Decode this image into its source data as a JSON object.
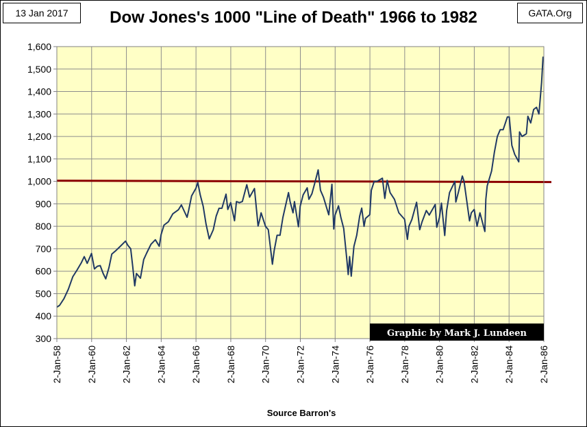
{
  "header": {
    "date": "13 Jan 2017",
    "site": "GATA.Org"
  },
  "chart_data": {
    "type": "line",
    "title": "Dow Jones's 1000 \"Line of Death\" 1966 to 1982",
    "xlabel": "Source Barron's",
    "ylabel": "",
    "x_ticks": [
      "2-Jan-58",
      "2-Jan-60",
      "2-Jan-62",
      "2-Jan-64",
      "2-Jan-66",
      "2-Jan-68",
      "2-Jan-70",
      "2-Jan-72",
      "2-Jan-74",
      "2-Jan-76",
      "2-Jan-78",
      "2-Jan-80",
      "2-Jan-82",
      "2-Jan-84",
      "2-Jan-86"
    ],
    "y_ticks": [
      "300",
      "400",
      "500",
      "600",
      "700",
      "800",
      "900",
      "1,000",
      "1,100",
      "1,200",
      "1,300",
      "1,400",
      "1,500",
      "1,600"
    ],
    "xlim": [
      "1958-01-02",
      "1986-01-02"
    ],
    "ylim": [
      300,
      1600
    ],
    "grid": true,
    "background": "#ffffc6",
    "series": [
      {
        "color": "#1f3864",
        "points": [
          [
            "1958-01-02",
            440
          ],
          [
            "1958-03-01",
            448
          ],
          [
            "1958-06-01",
            478
          ],
          [
            "1958-09-01",
            520
          ],
          [
            "1958-12-01",
            575
          ],
          [
            "1959-03-01",
            605
          ],
          [
            "1959-06-01",
            638
          ],
          [
            "1959-08-01",
            665
          ],
          [
            "1959-10-01",
            635
          ],
          [
            "1959-12-31",
            679
          ],
          [
            "1960-03-01",
            610
          ],
          [
            "1960-05-01",
            622
          ],
          [
            "1960-07-01",
            625
          ],
          [
            "1960-09-01",
            590
          ],
          [
            "1960-10-25",
            566
          ],
          [
            "1960-12-31",
            616
          ],
          [
            "1961-03-01",
            676
          ],
          [
            "1961-06-01",
            693
          ],
          [
            "1961-09-01",
            712
          ],
          [
            "1961-12-13",
            734
          ],
          [
            "1962-02-01",
            715
          ],
          [
            "1962-04-01",
            700
          ],
          [
            "1962-05-15",
            620
          ],
          [
            "1962-06-26",
            535
          ],
          [
            "1962-08-01",
            590
          ],
          [
            "1962-10-23",
            569
          ],
          [
            "1962-12-31",
            652
          ],
          [
            "1963-03-01",
            680
          ],
          [
            "1963-06-01",
            720
          ],
          [
            "1963-09-01",
            740
          ],
          [
            "1963-11-22",
            711
          ],
          [
            "1963-12-31",
            763
          ],
          [
            "1964-03-01",
            805
          ],
          [
            "1964-06-01",
            820
          ],
          [
            "1964-09-01",
            855
          ],
          [
            "1964-12-31",
            874
          ],
          [
            "1965-03-01",
            895
          ],
          [
            "1965-06-28",
            840
          ],
          [
            "1965-08-01",
            870
          ],
          [
            "1965-10-01",
            935
          ],
          [
            "1965-12-31",
            969
          ],
          [
            "1966-02-09",
            995
          ],
          [
            "1966-04-01",
            940
          ],
          [
            "1966-06-01",
            890
          ],
          [
            "1966-08-01",
            810
          ],
          [
            "1966-10-07",
            744
          ],
          [
            "1966-12-31",
            785
          ],
          [
            "1967-03-01",
            845
          ],
          [
            "1967-05-01",
            880
          ],
          [
            "1967-07-01",
            880
          ],
          [
            "1967-09-25",
            943
          ],
          [
            "1967-11-01",
            875
          ],
          [
            "1967-12-31",
            905
          ],
          [
            "1968-03-21",
            825
          ],
          [
            "1968-05-01",
            910
          ],
          [
            "1968-07-01",
            905
          ],
          [
            "1968-09-01",
            910
          ],
          [
            "1968-12-03",
            985
          ],
          [
            "1969-02-01",
            930
          ],
          [
            "1969-05-14",
            968
          ],
          [
            "1969-07-29",
            801
          ],
          [
            "1969-09-01",
            830
          ],
          [
            "1969-10-01",
            860
          ],
          [
            "1969-12-31",
            800
          ],
          [
            "1970-03-01",
            785
          ],
          [
            "1970-05-26",
            631
          ],
          [
            "1970-07-01",
            690
          ],
          [
            "1970-09-01",
            760
          ],
          [
            "1970-11-01",
            760
          ],
          [
            "1970-12-31",
            839
          ],
          [
            "1971-04-28",
            950
          ],
          [
            "1971-06-01",
            910
          ],
          [
            "1971-08-01",
            860
          ],
          [
            "1971-09-01",
            910
          ],
          [
            "1971-11-23",
            798
          ],
          [
            "1971-12-31",
            890
          ],
          [
            "1972-03-01",
            940
          ],
          [
            "1972-05-26",
            971
          ],
          [
            "1972-07-01",
            920
          ],
          [
            "1972-09-01",
            945
          ],
          [
            "1972-11-14",
            1003
          ],
          [
            "1973-01-11",
            1051
          ],
          [
            "1973-03-01",
            960
          ],
          [
            "1973-05-01",
            930
          ],
          [
            "1973-08-22",
            851
          ],
          [
            "1973-10-26",
            987
          ],
          [
            "1973-12-05",
            788
          ],
          [
            "1974-01-01",
            850
          ],
          [
            "1974-03-13",
            891
          ],
          [
            "1974-05-01",
            840
          ],
          [
            "1974-07-01",
            790
          ],
          [
            "1974-09-01",
            660
          ],
          [
            "1974-10-04",
            585
          ],
          [
            "1974-11-01",
            665
          ],
          [
            "1974-12-06",
            578
          ],
          [
            "1975-02-01",
            710
          ],
          [
            "1975-04-01",
            760
          ],
          [
            "1975-06-01",
            845
          ],
          [
            "1975-07-15",
            881
          ],
          [
            "1975-09-01",
            800
          ],
          [
            "1975-10-01",
            835
          ],
          [
            "1975-12-31",
            852
          ],
          [
            "1976-02-01",
            960
          ],
          [
            "1976-04-01",
            1000
          ],
          [
            "1976-06-01",
            1000
          ],
          [
            "1976-09-21",
            1014
          ],
          [
            "1976-11-10",
            924
          ],
          [
            "1976-12-31",
            1004
          ],
          [
            "1977-03-01",
            950
          ],
          [
            "1977-06-01",
            920
          ],
          [
            "1977-09-01",
            860
          ],
          [
            "1977-12-31",
            831
          ],
          [
            "1978-02-28",
            742
          ],
          [
            "1978-04-01",
            800
          ],
          [
            "1978-06-01",
            830
          ],
          [
            "1978-09-08",
            907
          ],
          [
            "1978-11-14",
            785
          ],
          [
            "1979-01-01",
            820
          ],
          [
            "1979-04-01",
            870
          ],
          [
            "1979-06-01",
            850
          ],
          [
            "1979-10-05",
            897
          ],
          [
            "1979-11-07",
            796
          ],
          [
            "1979-12-31",
            838
          ],
          [
            "1980-02-13",
            903
          ],
          [
            "1980-04-21",
            759
          ],
          [
            "1980-06-01",
            870
          ],
          [
            "1980-08-01",
            950
          ],
          [
            "1980-11-20",
            1000
          ],
          [
            "1980-12-11",
            908
          ],
          [
            "1981-02-01",
            950
          ],
          [
            "1981-04-27",
            1024
          ],
          [
            "1981-06-01",
            1000
          ],
          [
            "1981-09-25",
            824
          ],
          [
            "1981-11-01",
            860
          ],
          [
            "1981-12-31",
            875
          ],
          [
            "1982-03-01",
            800
          ],
          [
            "1982-05-01",
            860
          ],
          [
            "1982-08-12",
            777
          ],
          [
            "1982-09-01",
            920
          ],
          [
            "1982-10-01",
            980
          ],
          [
            "1982-12-31",
            1046
          ],
          [
            "1983-03-01",
            1130
          ],
          [
            "1983-05-01",
            1200
          ],
          [
            "1983-07-01",
            1230
          ],
          [
            "1983-09-01",
            1230
          ],
          [
            "1983-11-29",
            1287
          ],
          [
            "1984-01-06",
            1287
          ],
          [
            "1984-03-01",
            1160
          ],
          [
            "1984-05-01",
            1120
          ],
          [
            "1984-07-24",
            1087
          ],
          [
            "1984-08-10",
            1220
          ],
          [
            "1984-10-01",
            1200
          ],
          [
            "1984-12-31",
            1212
          ],
          [
            "1985-02-01",
            1290
          ],
          [
            "1985-04-01",
            1260
          ],
          [
            "1985-06-01",
            1320
          ],
          [
            "1985-08-01",
            1330
          ],
          [
            "1985-09-20",
            1300
          ],
          [
            "1985-10-15",
            1360
          ],
          [
            "1985-11-15",
            1440
          ],
          [
            "1985-12-16",
            1553
          ],
          [
            "1985-12-31",
            1550
          ]
        ]
      }
    ],
    "reference_line": {
      "y": 1000,
      "color": "#8b0000"
    },
    "annotation": "Graphic by Mark J. Lundeen"
  }
}
